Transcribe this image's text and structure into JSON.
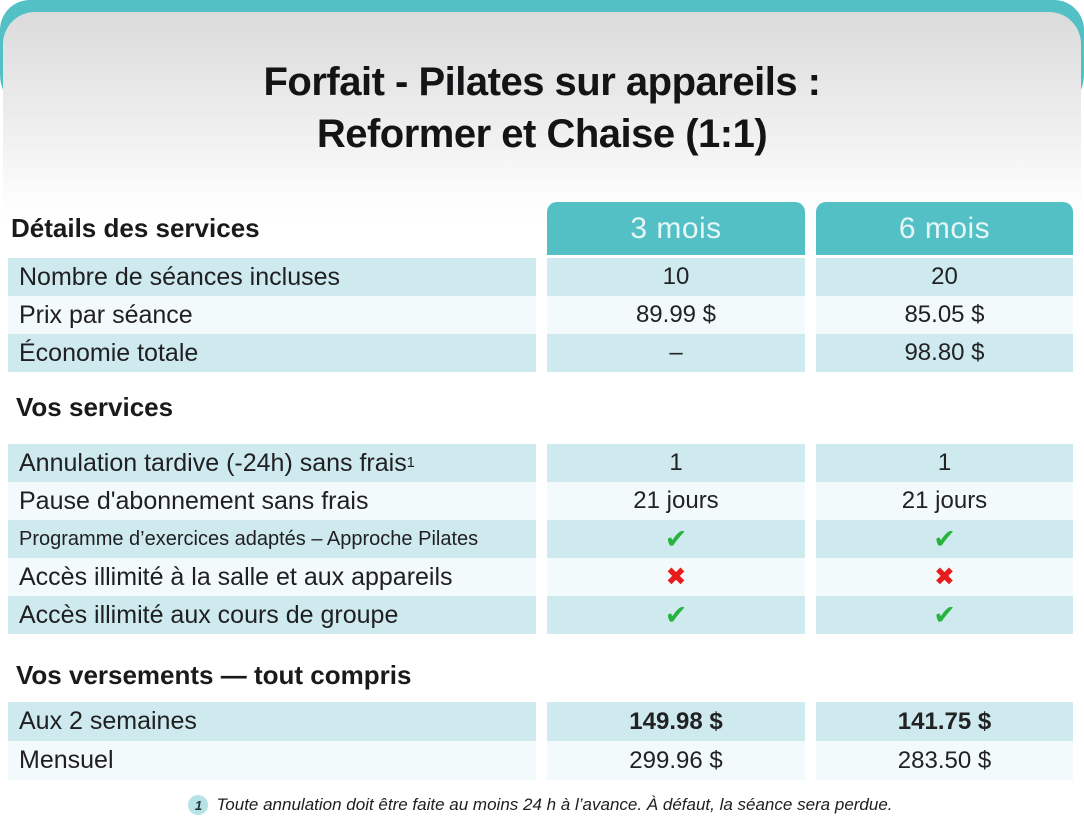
{
  "title": {
    "line1": "Forfait - Pilates sur appareils :",
    "line2": "Reformer et Chaise (1:1)"
  },
  "columns": [
    "3 mois",
    "6 mois"
  ],
  "sections": [
    {
      "heading": "Détails des services",
      "rows": [
        {
          "label": "Nombre de séances incluses",
          "values": [
            "10",
            "20"
          ]
        },
        {
          "label": "Prix par séance",
          "values": [
            "89.99 $",
            "85.05 $"
          ]
        },
        {
          "label": "Économie totale",
          "values": [
            "–",
            "98.80 $"
          ]
        }
      ]
    },
    {
      "heading": "Vos services",
      "rows": [
        {
          "label": "Annulation tardive (-24h) sans frais",
          "footnote_ref": "1",
          "values": [
            "1",
            "1"
          ]
        },
        {
          "label": "Pause d'abonnement sans frais",
          "values": [
            "21 jours",
            "21 jours"
          ]
        },
        {
          "label": "Programme d’exercices adaptés – Approche Pilates",
          "values": [
            "check",
            "check"
          ]
        },
        {
          "label": "Accès illimité à la salle et aux appareils",
          "values": [
            "cross",
            "cross"
          ]
        },
        {
          "label": "Accès illimité aux cours de groupe",
          "values": [
            "check",
            "check"
          ]
        }
      ]
    },
    {
      "heading": "Vos versements — tout compris",
      "rows": [
        {
          "label": "Aux 2 semaines",
          "values": [
            "149.98 $",
            "141.75 $"
          ],
          "emphasis": true
        },
        {
          "label": "Mensuel",
          "values": [
            "299.96 $",
            "283.50 $"
          ]
        }
      ]
    }
  ],
  "icons": {
    "check": "✔",
    "cross": "✖"
  },
  "footnote": {
    "marker": "1",
    "text": "Toute annulation doit être faite au moins 24 h à l’avance. À défaut, la séance sera perdue."
  },
  "colors": {
    "teal": "#53c0c5",
    "row_teal": "#cfeaee",
    "row_pale": "#f3fafb",
    "check_green": "#27b43e",
    "cross_red": "#e81c1c",
    "header_text": "#e6f6f7"
  }
}
